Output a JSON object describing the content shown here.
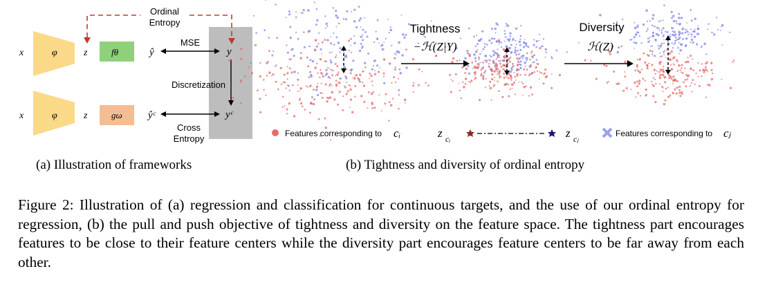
{
  "panel_a": {
    "ordinal_entropy": [
      "Ordinal",
      "Entropy"
    ],
    "mse": "MSE",
    "discretization": "Discretization",
    "cross_entropy": [
      "Cross",
      "Entropy"
    ],
    "top_row": {
      "x": "x",
      "phi": "φ",
      "z": "z",
      "f": "fθ",
      "yhat": "ŷ",
      "y": "y"
    },
    "bottom_row": {
      "x": "x",
      "phi": "φ",
      "z": "z",
      "g": "gω",
      "yhat": "ŷᶜ",
      "y": "yᶜ"
    },
    "caption": "(a) Illustration of frameworks"
  },
  "panel_b": {
    "tightness_label": "Tightness",
    "tightness_formula": "−ℋ(Z|Y)",
    "diversity_label": "Diversity",
    "diversity_formula": "ℋ(Z)",
    "legend": {
      "features_ci_text": "Features corresponding to",
      "ci": "cᵢ",
      "zci": "z",
      "zci_sub": "cᵢ",
      "zcj": "z",
      "zcj_sub": "cⱼ",
      "features_cj_text": "Features corresponding to",
      "cj": "cⱼ"
    },
    "caption": "(b) Tightness and diversity of ordinal entropy",
    "colors": {
      "red": "#e86a6a",
      "blue": "#7f86ea",
      "box_green": "#8fd17a",
      "box_orange": "#f5bd93",
      "trapezoid": "#fad988",
      "gray": "#bdbdbd",
      "dash_red": "#c0392b"
    }
  },
  "caption": "Figure 2: Illustration of (a) regression and classification for continuous targets, and the use of our ordinal entropy for regression, (b) the pull and push objective of tightness and diversity on the feature space. The tightness part encourages features to be close to their feature centers while the diversity part encourages feature centers to be far away from each other."
}
